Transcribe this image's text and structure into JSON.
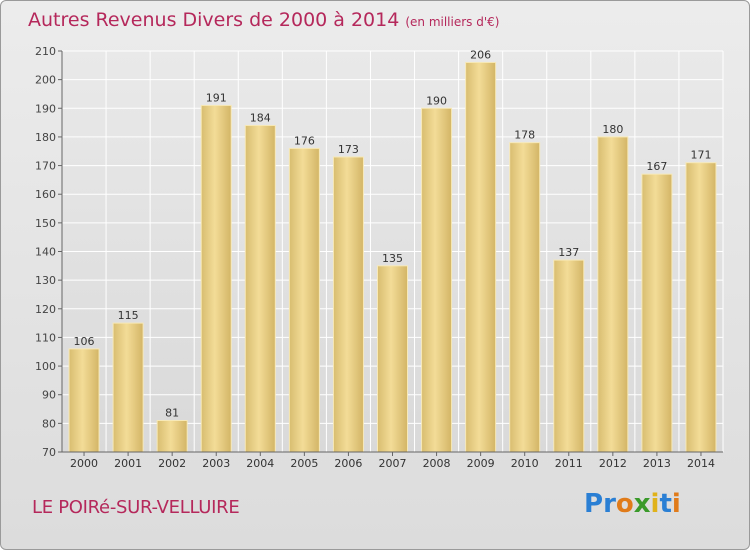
{
  "header": {
    "title": "Autres Revenus Divers de 2000 à 2014",
    "subtitle": "(en milliers d'€)"
  },
  "footer": {
    "commune": "LE POIRé-SUR-VELLUIRE"
  },
  "logo": {
    "letters": [
      "P",
      "r",
      "o",
      "x",
      "i",
      "t",
      "i"
    ],
    "colors": [
      "#2a7fd4",
      "#2a7fd4",
      "#e07b1a",
      "#3a9a2a",
      "#e0b21a",
      "#2a7fd4",
      "#e07b1a"
    ]
  },
  "colors": {
    "bar": "#e8cf86",
    "bar_light": "#f6e4a8",
    "bar_dark": "#c9aa5a",
    "title": "#b5285b",
    "grid": "#ffffff"
  },
  "chart_data": {
    "type": "bar",
    "categories": [
      "2000",
      "2001",
      "2002",
      "2003",
      "2004",
      "2005",
      "2006",
      "2007",
      "2008",
      "2009",
      "2010",
      "2011",
      "2012",
      "2013",
      "2014"
    ],
    "values": [
      106,
      115,
      81,
      191,
      184,
      176,
      173,
      135,
      190,
      206,
      178,
      137,
      180,
      167,
      171
    ],
    "ylim": [
      70,
      210
    ],
    "yticks": [
      70,
      80,
      90,
      100,
      110,
      120,
      130,
      140,
      150,
      160,
      170,
      180,
      190,
      200,
      210
    ],
    "grid": true
  }
}
